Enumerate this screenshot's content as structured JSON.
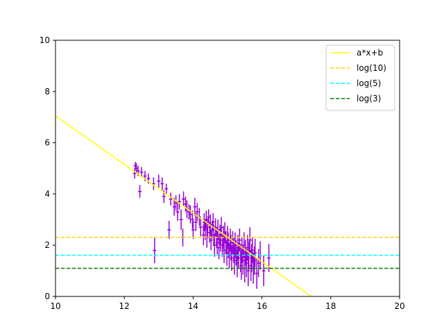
{
  "chart_data": {
    "type": "scatter",
    "title": "",
    "xlabel": "",
    "ylabel": "",
    "xlim": [
      10,
      20
    ],
    "ylim": [
      0,
      10
    ],
    "xticks": [
      "10",
      "12",
      "14",
      "16",
      "18",
      "20"
    ],
    "yticks": [
      "0",
      "2",
      "4",
      "6",
      "8",
      "10"
    ],
    "grid": false,
    "legend_position": "top-right",
    "lines": [
      {
        "name": "a*x+b",
        "kind": "fit",
        "color": "#ffff00",
        "dash": "solid",
        "x": [
          10,
          17.43
        ],
        "y": [
          7.05,
          0
        ]
      },
      {
        "name": "log(10)",
        "kind": "hline",
        "color": "#ffd700",
        "dash": "dashed",
        "y": 2.3026
      },
      {
        "name": "log(5)",
        "kind": "hline",
        "color": "#00ffff",
        "dash": "dashed",
        "y": 1.6094
      },
      {
        "name": "log(3)",
        "kind": "hline",
        "color": "#008000",
        "dash": "dashed",
        "y": 1.0986
      }
    ],
    "errorbar_series": {
      "color": "#9400d3",
      "points": [
        [
          12.3,
          4.8,
          0.05,
          0.2
        ],
        [
          12.32,
          5.1,
          0.05,
          0.15
        ],
        [
          12.35,
          5.0,
          0.05,
          0.2
        ],
        [
          12.4,
          4.9,
          0.05,
          0.2
        ],
        [
          12.45,
          4.1,
          0.05,
          0.25
        ],
        [
          12.5,
          4.85,
          0.05,
          0.2
        ],
        [
          12.6,
          4.7,
          0.05,
          0.2
        ],
        [
          12.7,
          4.6,
          0.05,
          0.2
        ],
        [
          12.85,
          4.4,
          0.05,
          0.25
        ],
        [
          12.88,
          1.8,
          0.05,
          0.5
        ],
        [
          13.0,
          4.5,
          0.05,
          0.25
        ],
        [
          13.1,
          4.4,
          0.05,
          0.25
        ],
        [
          13.15,
          3.9,
          0.05,
          0.25
        ],
        [
          13.22,
          4.2,
          0.05,
          0.2
        ],
        [
          13.3,
          2.6,
          0.05,
          0.35
        ],
        [
          13.35,
          3.8,
          0.05,
          0.25
        ],
        [
          13.45,
          3.5,
          0.05,
          0.35
        ],
        [
          13.5,
          3.65,
          0.05,
          0.3
        ],
        [
          13.55,
          3.3,
          0.05,
          0.35
        ],
        [
          13.6,
          3.7,
          0.05,
          0.3
        ],
        [
          13.65,
          3.0,
          0.05,
          0.4
        ],
        [
          13.7,
          2.3,
          0.05,
          0.35
        ],
        [
          13.72,
          3.8,
          0.05,
          0.3
        ],
        [
          13.78,
          3.6,
          0.05,
          0.3
        ],
        [
          13.82,
          3.4,
          0.05,
          0.35
        ],
        [
          13.88,
          3.3,
          0.05,
          0.3
        ],
        [
          13.92,
          3.2,
          0.05,
          0.35
        ],
        [
          13.98,
          3.0,
          0.05,
          0.35
        ],
        [
          14.0,
          2.6,
          0.05,
          0.35
        ],
        [
          14.05,
          3.5,
          0.05,
          0.35
        ],
        [
          14.08,
          2.9,
          0.05,
          0.35
        ],
        [
          14.12,
          3.3,
          0.05,
          0.35
        ],
        [
          14.18,
          3.1,
          0.05,
          0.35
        ],
        [
          14.22,
          2.7,
          0.05,
          0.35
        ],
        [
          14.3,
          2.4,
          0.05,
          0.4
        ],
        [
          14.32,
          2.9,
          0.05,
          0.35
        ],
        [
          14.35,
          2.6,
          0.05,
          0.4
        ],
        [
          14.38,
          3.0,
          0.05,
          0.35
        ],
        [
          14.4,
          2.3,
          0.05,
          0.4
        ],
        [
          14.42,
          2.7,
          0.05,
          0.35
        ],
        [
          14.45,
          3.1,
          0.05,
          0.3
        ],
        [
          14.48,
          2.5,
          0.05,
          0.4
        ],
        [
          14.5,
          2.8,
          0.05,
          0.4
        ],
        [
          14.52,
          2.2,
          0.05,
          0.4
        ],
        [
          14.55,
          2.6,
          0.05,
          0.35
        ],
        [
          14.58,
          2.9,
          0.05,
          0.35
        ],
        [
          14.6,
          2.4,
          0.05,
          0.4
        ],
        [
          14.62,
          2.0,
          0.05,
          0.45
        ],
        [
          14.65,
          2.7,
          0.05,
          0.35
        ],
        [
          14.68,
          2.3,
          0.05,
          0.4
        ],
        [
          14.7,
          2.1,
          0.05,
          0.45
        ],
        [
          14.72,
          2.6,
          0.05,
          0.4
        ],
        [
          14.75,
          1.9,
          0.05,
          0.45
        ],
        [
          14.78,
          2.4,
          0.05,
          0.4
        ],
        [
          14.8,
          2.2,
          0.05,
          0.45
        ],
        [
          14.82,
          2.7,
          0.05,
          0.4
        ],
        [
          14.85,
          2.0,
          0.05,
          0.45
        ],
        [
          14.88,
          2.3,
          0.05,
          0.45
        ],
        [
          14.9,
          1.8,
          0.05,
          0.5
        ],
        [
          14.92,
          2.5,
          0.05,
          0.4
        ],
        [
          14.95,
          2.1,
          0.05,
          0.45
        ],
        [
          14.98,
          1.7,
          0.05,
          0.5
        ],
        [
          15.0,
          2.3,
          0.05,
          0.45
        ],
        [
          15.02,
          2.0,
          0.05,
          0.5
        ],
        [
          15.05,
          1.6,
          0.05,
          0.5
        ],
        [
          15.08,
          2.2,
          0.05,
          0.45
        ],
        [
          15.1,
          1.9,
          0.05,
          0.5
        ],
        [
          15.12,
          1.5,
          0.05,
          0.5
        ],
        [
          15.15,
          2.1,
          0.05,
          0.45
        ],
        [
          15.18,
          1.8,
          0.05,
          0.5
        ],
        [
          15.2,
          1.4,
          0.05,
          0.55
        ],
        [
          15.22,
          2.0,
          0.05,
          0.5
        ],
        [
          15.25,
          1.7,
          0.05,
          0.5
        ],
        [
          15.28,
          1.3,
          0.05,
          0.55
        ],
        [
          15.3,
          1.9,
          0.05,
          0.5
        ],
        [
          15.32,
          1.6,
          0.05,
          0.5
        ],
        [
          15.35,
          2.2,
          0.05,
          0.45
        ],
        [
          15.38,
          1.5,
          0.05,
          0.55
        ],
        [
          15.4,
          1.2,
          0.05,
          0.55
        ],
        [
          15.42,
          1.8,
          0.05,
          0.5
        ],
        [
          15.45,
          1.4,
          0.05,
          0.55
        ],
        [
          15.48,
          2.0,
          0.05,
          0.5
        ],
        [
          15.5,
          1.1,
          0.05,
          0.55
        ],
        [
          15.52,
          1.7,
          0.05,
          0.5
        ],
        [
          15.55,
          1.3,
          0.05,
          0.55
        ],
        [
          15.58,
          1.9,
          0.05,
          0.5
        ],
        [
          15.6,
          1.0,
          0.05,
          0.6
        ],
        [
          15.62,
          1.6,
          0.05,
          0.55
        ],
        [
          15.65,
          2.2,
          0.05,
          0.5
        ],
        [
          15.68,
          1.2,
          0.05,
          0.6
        ],
        [
          15.7,
          1.5,
          0.05,
          0.55
        ],
        [
          15.72,
          1.8,
          0.05,
          0.5
        ],
        [
          15.75,
          1.1,
          0.05,
          0.6
        ],
        [
          15.78,
          1.4,
          0.05,
          0.55
        ],
        [
          15.8,
          1.7,
          0.05,
          0.55
        ],
        [
          15.85,
          0.9,
          0.05,
          0.6
        ],
        [
          15.9,
          1.3,
          0.05,
          0.55
        ],
        [
          15.95,
          1.6,
          0.05,
          0.55
        ],
        [
          16.05,
          1.0,
          0.05,
          0.6
        ],
        [
          16.2,
          1.5,
          0.05,
          0.55
        ]
      ]
    }
  }
}
